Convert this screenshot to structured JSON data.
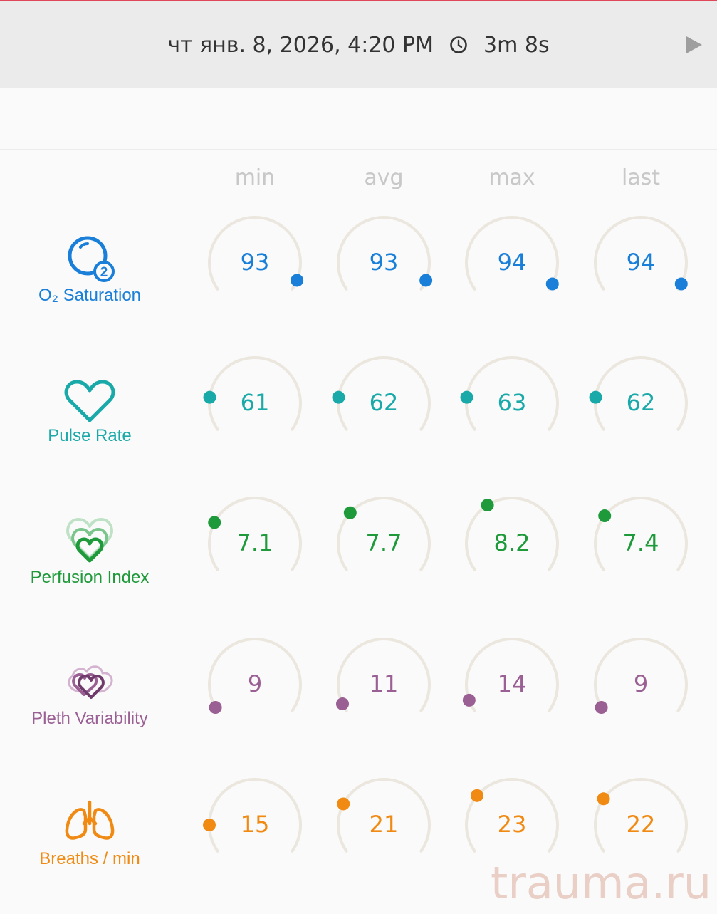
{
  "header": {
    "date": "чт янв. 8, 2026, 4:20 PM",
    "duration": "3m 8s"
  },
  "columns": [
    "min",
    "avg",
    "max",
    "last"
  ],
  "metrics": [
    {
      "key": "o2",
      "label": "O₂ Saturation",
      "color": "#1a7fd8",
      "icon": "o2-bubble-icon",
      "values": [
        "93",
        "93",
        "94",
        "94"
      ],
      "positions": [
        0.95,
        0.95,
        0.97,
        0.97
      ]
    },
    {
      "key": "pulse",
      "label": "Pulse Rate",
      "color": "#1aa9a9",
      "icon": "heart-outline-icon",
      "values": [
        "61",
        "62",
        "63",
        "62"
      ],
      "positions": [
        0.17,
        0.17,
        0.17,
        0.17
      ]
    },
    {
      "key": "perfusion",
      "label": "Perfusion Index",
      "color": "#1e9a3a",
      "icon": "layered-hearts-icon",
      "values": [
        "7.1",
        "7.7",
        "8.2",
        "7.4"
      ],
      "positions": [
        0.25,
        0.31,
        0.37,
        0.29
      ]
    },
    {
      "key": "pleth",
      "label": "Pleth Variability",
      "color": "#9a5f93",
      "icon": "pleth-hearts-icon",
      "values": [
        "9",
        "11",
        "14",
        "9"
      ],
      "positions": [
        0.02,
        0.04,
        0.06,
        0.02
      ]
    },
    {
      "key": "breaths",
      "label": "Breaths / min",
      "color": "#f08a12",
      "icon": "lungs-icon",
      "values": [
        "15",
        "21",
        "23",
        "22"
      ],
      "positions": [
        0.14,
        0.25,
        0.3,
        0.28
      ]
    }
  ],
  "watermark": "trauma.ru"
}
